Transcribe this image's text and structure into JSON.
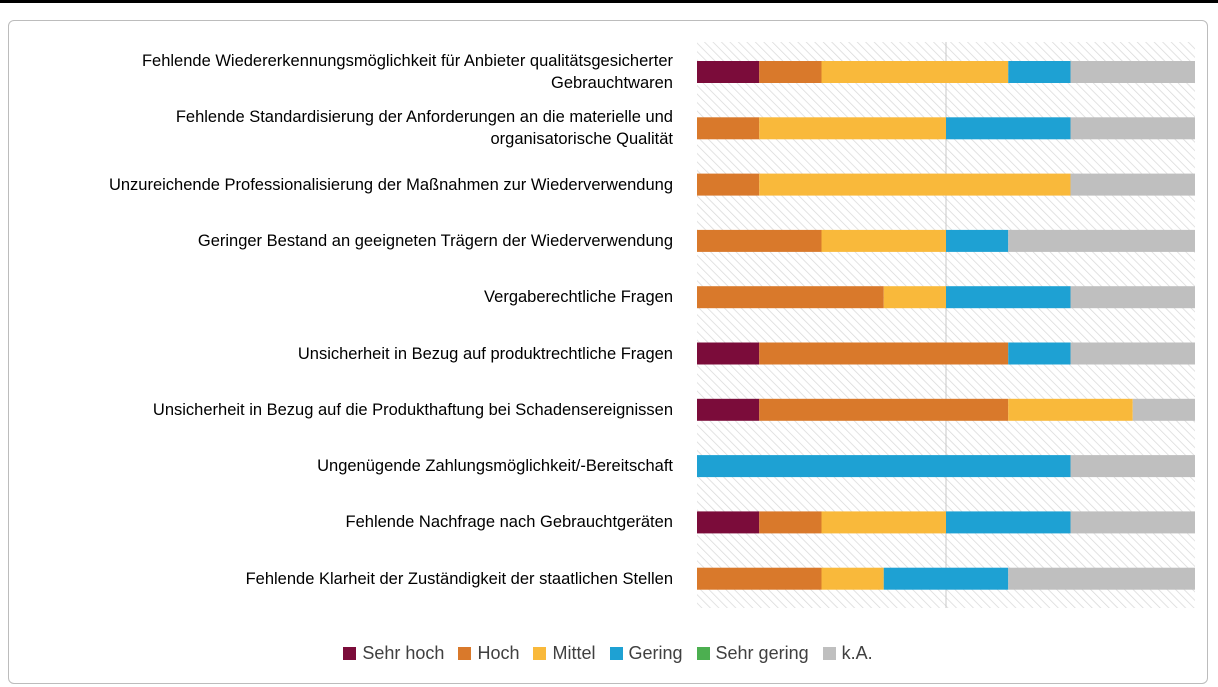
{
  "chart_data": {
    "type": "stacked-barh",
    "categories": [
      "Fehlende Wiedererkennungsmöglichkeit für Anbieter qualitätsgesicherter Gebrauchtwaren",
      "Fehlende Standardisierung der Anforderungen an die materielle und organisatorische Qualität",
      "Unzureichende Professionalisierung der Maßnahmen zur Wiederverwendung",
      "Geringer Bestand an geeigneten Trägern der Wiederverwendung",
      "Vergaberechtliche Fragen",
      "Unsicherheit in Bezug auf produktrechtliche Fragen",
      "Unsicherheit in Bezug auf die Produkthaftung bei Schadensereignissen",
      "Ungenügende Zahlungsmöglichkeit/-Bereitschaft",
      "Fehlende Nachfrage nach Gebrauchtgeräten",
      "Fehlende Klarheit der Zuständigkeit der staatlichen Stellen"
    ],
    "series": [
      {
        "name": "Sehr hoch",
        "color": "#7b0c3a",
        "values": [
          1,
          0,
          0,
          0,
          0,
          1,
          1,
          0,
          1,
          0
        ]
      },
      {
        "name": "Hoch",
        "color": "#d9792b",
        "values": [
          1,
          1,
          1,
          2,
          3,
          4,
          4,
          0,
          1,
          2
        ]
      },
      {
        "name": "Mittel",
        "color": "#f9b93b",
        "values": [
          3,
          3,
          5,
          2,
          1,
          0,
          2,
          0,
          2,
          1
        ]
      },
      {
        "name": "Gering",
        "color": "#1ea1d3",
        "values": [
          1,
          2,
          0,
          1,
          2,
          1,
          0,
          6,
          2,
          2
        ]
      },
      {
        "name": "Sehr gering",
        "color": "#4caf50",
        "values": [
          0,
          0,
          0,
          0,
          0,
          0,
          0,
          0,
          0,
          0
        ]
      },
      {
        "name": "k.A.",
        "color": "#bfbfbf",
        "values": [
          2,
          2,
          2,
          3,
          2,
          2,
          1,
          2,
          2,
          3
        ]
      }
    ],
    "xlim": [
      0,
      8
    ]
  }
}
